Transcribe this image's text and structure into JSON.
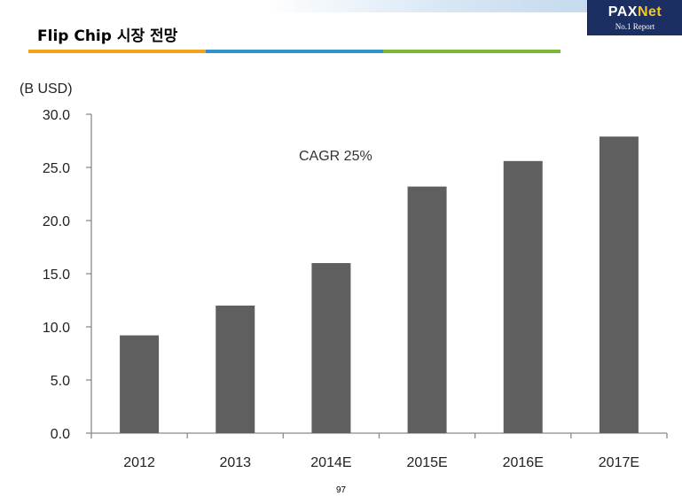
{
  "header": {
    "title": "Flip Chip 시장 전망",
    "accent_colors": [
      "#f3a21b",
      "#2f95c8",
      "#7ab835"
    ]
  },
  "logo": {
    "brand_part1": "PAX",
    "brand_part2": "Net",
    "tagline": "No.1 Report",
    "background": "#1c2f63"
  },
  "chart_data": {
    "type": "bar",
    "unit_label": "(B USD)",
    "categories": [
      "2012",
      "2013",
      "2014E",
      "2015E",
      "2016E",
      "2017E"
    ],
    "values": [
      9.2,
      12.0,
      16.0,
      23.2,
      25.6,
      27.9
    ],
    "ylim": [
      0,
      30
    ],
    "yticks": [
      "0.0",
      "5.0",
      "10.0",
      "15.0",
      "20.0",
      "25.0",
      "30.0"
    ],
    "annotation": "CAGR 25%",
    "bar_color": "#5f5f5f",
    "grid": false
  },
  "footer": {
    "page_number": "97"
  }
}
